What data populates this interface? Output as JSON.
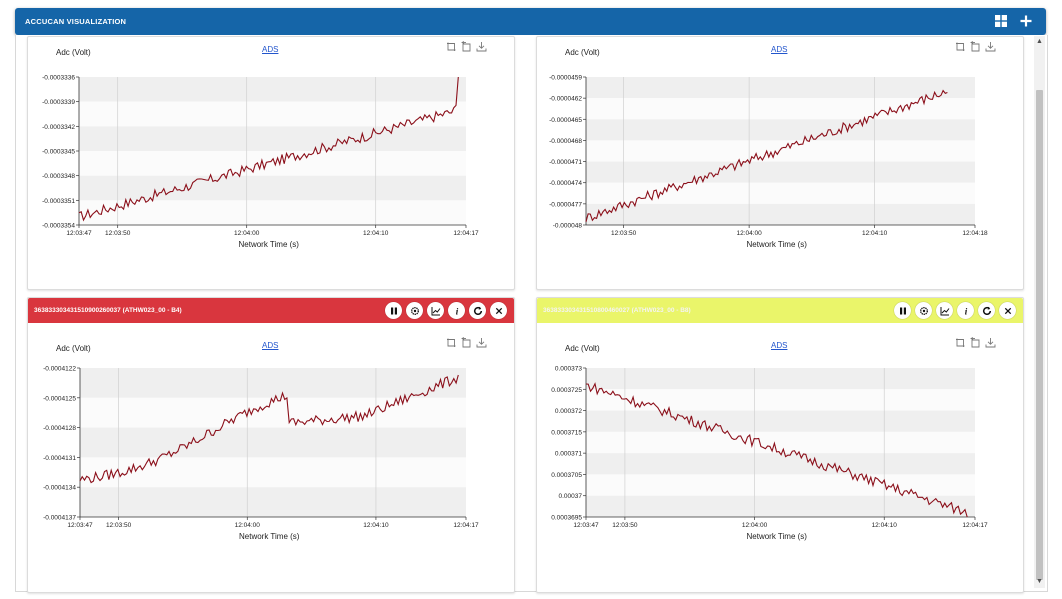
{
  "app": {
    "title": "ACCUCAN VISUALIZATION",
    "icons": [
      "grid-view-icon",
      "add-icon"
    ]
  },
  "toolbar_icons": [
    "zoom-icon",
    "reset-zoom-icon",
    "download-icon"
  ],
  "header_buttons": [
    "pause-icon",
    "settings-icon",
    "chart-icon",
    "info-icon",
    "refresh-icon",
    "close-icon"
  ],
  "panels": [
    {
      "id": "p1",
      "header": null,
      "ylabel": "Adc (Volt)",
      "link": "ADS",
      "xlabel": "Network Time (s)",
      "chart_data": {
        "type": "line",
        "x_ticks": [
          "12:03:47",
          "12:03:50",
          "12:04:00",
          "12:04:10",
          "12:04:17"
        ],
        "x_tick_seconds": [
          0,
          3,
          13,
          23,
          30
        ],
        "y_ticks": [
          "-0.0003336",
          "-0.0003339",
          "-0.0003342",
          "-0.0003345",
          "-0.0003348",
          "-0.0003351",
          "-0.0003354"
        ],
        "ylim": [
          -0.0003354,
          -0.0003336
        ],
        "start": -0.0003353,
        "end": -0.000334,
        "spike": -0.0003336,
        "shape": "linear",
        "color": "#8b0f1a"
      }
    },
    {
      "id": "p2",
      "header": null,
      "ylabel": "Adc (Volt)",
      "link": "ADS",
      "xlabel": "Network Time (s)",
      "chart_data": {
        "type": "line",
        "x_ticks": [
          "12:03:50",
          "12:04:00",
          "12:04:10",
          "12:04:18"
        ],
        "x_tick_seconds": [
          3,
          13,
          23,
          31
        ],
        "y_ticks": [
          "-0.0000459",
          "-0.0000462",
          "-0.0000465",
          "-0.0000468",
          "-0.0000471",
          "-0.0000474",
          "-0.0000477",
          "-0.000048"
        ],
        "ylim": [
          -4.8e-05,
          -4.59e-05
        ],
        "start": -4.79e-05,
        "end": -4.61e-05,
        "spike": null,
        "shape": "linear",
        "color": "#8b0f1a"
      }
    },
    {
      "id": "p3",
      "header": {
        "text": "363833303431510900260037 (ATHW023_00 - B4)",
        "bg": "#d9363e",
        "fg": "#ffffff"
      },
      "ylabel": "Adc (Volt)",
      "link": "ADS",
      "xlabel": "Network Time (s)",
      "chart_data": {
        "type": "line",
        "x_ticks": [
          "12:03:47",
          "12:03:50",
          "12:04:00",
          "12:04:10",
          "12:04:17"
        ],
        "x_tick_seconds": [
          0,
          3,
          13,
          23,
          30
        ],
        "y_ticks": [
          "-0.0004122",
          "-0.0004125",
          "-0.0004128",
          "-0.0004131",
          "-0.0004134",
          "-0.0004137"
        ],
        "ylim": [
          -0.0004137,
          -0.0004122
        ],
        "start": -0.0004135,
        "end": -0.0004123,
        "spike": null,
        "shape": "sigmoid",
        "color": "#8b0f1a"
      }
    },
    {
      "id": "p4",
      "header": {
        "text": "363833303431510800460027 (ATHW023_00 - B8)",
        "bg": "#eaf56a",
        "fg": "#f4f4f4"
      },
      "ylabel": "Adc (Volt)",
      "link": "ADS",
      "xlabel": "Network Time (s)",
      "chart_data": {
        "type": "line",
        "x_ticks": [
          "12:03:47",
          "12:03:50",
          "12:04:00",
          "12:04:10",
          "12:04:17"
        ],
        "x_tick_seconds": [
          0,
          3,
          13,
          23,
          30
        ],
        "y_ticks": [
          "0.000373",
          "0.0003725",
          "0.000372",
          "0.0003715",
          "0.000371",
          "0.0003705",
          "0.00037",
          "0.0003695"
        ],
        "ylim": [
          0.0003695,
          0.000373
        ],
        "start": 0.0003726,
        "end": 0.0003696,
        "spike": null,
        "shape": "linear",
        "color": "#8b0f1a"
      }
    }
  ]
}
